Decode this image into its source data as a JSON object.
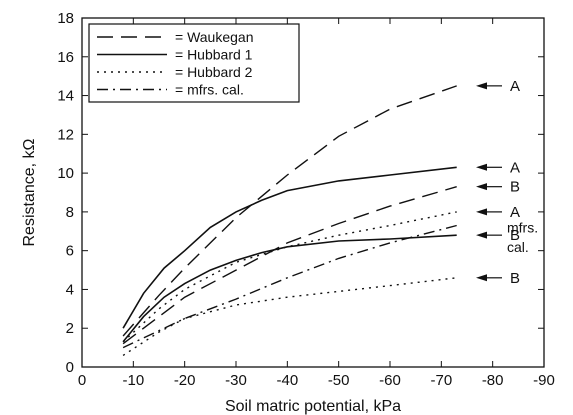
{
  "chart_data": {
    "type": "line",
    "title": "",
    "xlabel": "Soil matric potential, kPa",
    "ylabel": "Resistance, kΩ",
    "xlim": [
      0,
      -90
    ],
    "ylim": [
      0,
      18
    ],
    "xticks": [
      0,
      -10,
      -20,
      -30,
      -40,
      -50,
      -60,
      -70,
      -80,
      -90
    ],
    "yticks": [
      0,
      2,
      4,
      6,
      8,
      10,
      12,
      14,
      16,
      18
    ],
    "grid": false,
    "legend_position": "top-left",
    "legend": [
      {
        "label": "= Waukegan",
        "style": "long-dash"
      },
      {
        "label": "= Hubbard 1",
        "style": "solid"
      },
      {
        "label": "= Hubbard 2",
        "style": "dotted"
      },
      {
        "label": "= mfrs. cal.",
        "style": "dash-dot"
      }
    ],
    "series": [
      {
        "name": "Waukegan",
        "label": "A",
        "style": "long-dash",
        "x": [
          -8,
          -15,
          -20,
          -30,
          -40,
          -50,
          -60,
          -73
        ],
        "y": [
          1.6,
          3.7,
          5.1,
          7.7,
          9.9,
          11.9,
          13.3,
          14.5
        ]
      },
      {
        "name": "Hubbard 1",
        "label": "A",
        "style": "solid",
        "x": [
          -8,
          -12,
          -16,
          -20,
          -25,
          -30,
          -35,
          -40,
          -50,
          -60,
          -73
        ],
        "y": [
          2.0,
          3.8,
          5.1,
          6.0,
          7.2,
          8.0,
          8.6,
          9.1,
          9.6,
          9.9,
          10.3
        ]
      },
      {
        "name": "Waukegan",
        "label": "B",
        "style": "long-dash",
        "x": [
          -8,
          -15,
          -20,
          -30,
          -40,
          -50,
          -60,
          -73
        ],
        "y": [
          1.2,
          2.6,
          3.6,
          5.0,
          6.4,
          7.4,
          8.3,
          9.3
        ]
      },
      {
        "name": "Hubbard 2",
        "label": "A",
        "style": "dotted",
        "x": [
          -8,
          -15,
          -20,
          -30,
          -40,
          -50,
          -60,
          -73
        ],
        "y": [
          1.3,
          3.0,
          4.0,
          5.4,
          6.2,
          6.8,
          7.3,
          8.0
        ]
      },
      {
        "name": "Hubbard 1",
        "label": "B",
        "style": "solid",
        "x": [
          -8,
          -12,
          -16,
          -20,
          -25,
          -30,
          -35,
          -40,
          -50,
          -60,
          -73
        ],
        "y": [
          1.3,
          2.6,
          3.6,
          4.3,
          5.0,
          5.5,
          5.9,
          6.2,
          6.5,
          6.6,
          6.8
        ]
      },
      {
        "name": "mfrs. cal.",
        "label": "",
        "style": "dash-dot",
        "x": [
          -8,
          -20,
          -30,
          -40,
          -50,
          -60,
          -73
        ],
        "y": [
          1.0,
          2.5,
          3.5,
          4.6,
          5.6,
          6.4,
          7.3
        ]
      },
      {
        "name": "Hubbard 2",
        "label": "B",
        "style": "dotted",
        "x": [
          -8,
          -15,
          -20,
          -30,
          -40,
          -50,
          -60,
          -73
        ],
        "y": [
          0.6,
          1.8,
          2.5,
          3.2,
          3.6,
          3.9,
          4.2,
          4.6
        ]
      }
    ],
    "annotations": [
      {
        "text": "A",
        "y": 14.5
      },
      {
        "text": "A",
        "y": 10.3
      },
      {
        "text": "B",
        "y": 9.3
      },
      {
        "text": "A",
        "y": 8.0
      },
      {
        "text": "B",
        "y": 6.8
      },
      {
        "text": "mfrs.",
        "y": 7.2
      },
      {
        "text": "cal.",
        "y": 6.2
      },
      {
        "text": "B",
        "y": 4.6
      }
    ]
  }
}
